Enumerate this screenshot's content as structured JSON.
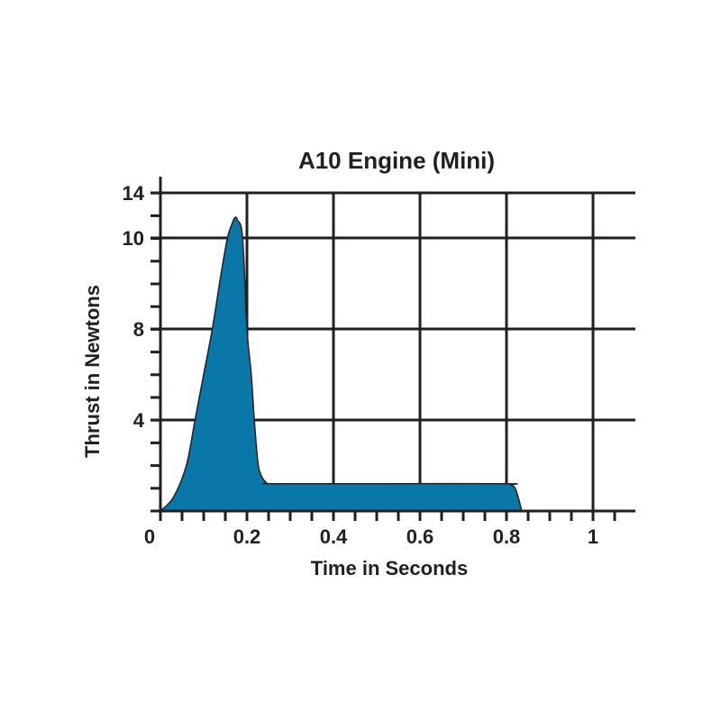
{
  "chart_data": {
    "type": "area",
    "title": "A10 Engine (Mini)",
    "xlabel": "Time in Seconds",
    "ylabel": "Thrust in Newtons",
    "x_ticks": [
      "0",
      "0.2",
      "0.4",
      "0.6",
      "0.8",
      "1"
    ],
    "x_tick_values": [
      0,
      0.2,
      0.4,
      0.6,
      0.8,
      1
    ],
    "y_ticks": [
      "4",
      "8",
      "10",
      "14"
    ],
    "y_tick_values": [
      4,
      8,
      10,
      14
    ],
    "xlim": [
      0,
      1.1
    ],
    "ylim": [
      0,
      14
    ],
    "grid": true,
    "fill_color": "#0a77a9",
    "series": [
      {
        "x": [
          0,
          0.03,
          0.06,
          0.08,
          0.1,
          0.12,
          0.14,
          0.155,
          0.165,
          0.172,
          0.178,
          0.19,
          0.2,
          0.21,
          0.217,
          0.225,
          0.232,
          0.245,
          0.26,
          0.5,
          0.8,
          0.81,
          0.82,
          0.83,
          0.835
        ],
        "y": [
          0,
          0.6,
          2.0,
          4.0,
          6.0,
          8.0,
          9.2,
          10.0,
          11.2,
          11.8,
          11.6,
          10.0,
          8.0,
          6.0,
          4.0,
          2.2,
          1.6,
          1.25,
          1.2,
          1.2,
          1.2,
          1.15,
          1.0,
          0.4,
          0
        ]
      }
    ]
  }
}
